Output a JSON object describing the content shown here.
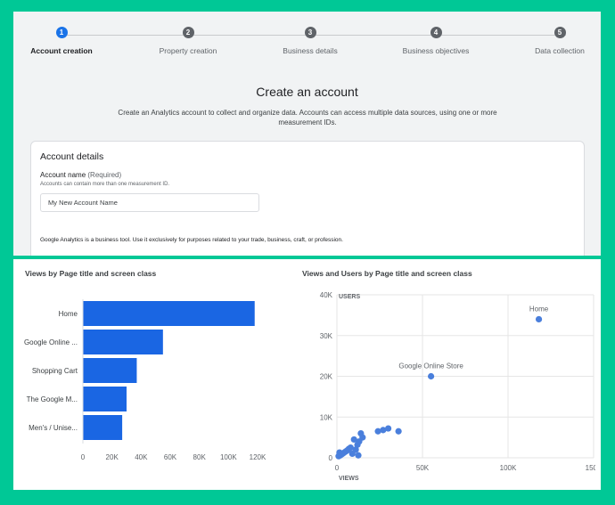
{
  "stepper": {
    "steps": [
      {
        "number": "1",
        "label": "Account creation",
        "active": true
      },
      {
        "number": "2",
        "label": "Property creation",
        "active": false
      },
      {
        "number": "3",
        "label": "Business details",
        "active": false
      },
      {
        "number": "4",
        "label": "Business objectives",
        "active": false
      },
      {
        "number": "5",
        "label": "Data collection",
        "active": false
      }
    ]
  },
  "create": {
    "title": "Create an account",
    "description": "Create an Analytics account to collect and organize data. Accounts can access multiple data sources, using one or more measurement IDs."
  },
  "account_details": {
    "heading": "Account details",
    "name_label": "Account name",
    "name_required": "(Required)",
    "name_hint": "Accounts can contain more than one measurement ID.",
    "name_value": "My New Account Name",
    "notice": "Google Analytics is a business tool. Use it exclusively for purposes related to your trade, business, craft, or profession."
  },
  "colors": {
    "accent": "#1a73e8",
    "bar": "#1a66e3",
    "point": "#4a7fdc"
  },
  "chart_data": [
    {
      "type": "bar",
      "orientation": "horizontal",
      "title": "Views by Page title and screen class",
      "categories": [
        "Home",
        "Google Online ...",
        "Shopping Cart",
        "The Google M...",
        "Men's / Unise..."
      ],
      "values": [
        118000,
        55000,
        37000,
        30000,
        27000
      ],
      "xlim": [
        0,
        120000
      ],
      "x_ticks": [
        "0",
        "20K",
        "40K",
        "60K",
        "80K",
        "100K",
        "120K"
      ],
      "x_tick_values": [
        0,
        20000,
        40000,
        60000,
        80000,
        100000,
        120000
      ]
    },
    {
      "type": "scatter",
      "title": "Views and Users by Page title and screen class",
      "xlabel": "VIEWS",
      "ylabel": "USERS",
      "xlim": [
        0,
        150000
      ],
      "ylim": [
        0,
        40000
      ],
      "x_ticks": [
        "0",
        "50K",
        "100K",
        "150K"
      ],
      "x_tick_values": [
        0,
        50000,
        100000,
        150000
      ],
      "y_ticks": [
        "0",
        "10K",
        "20K",
        "30K",
        "40K"
      ],
      "y_tick_values": [
        0,
        10000,
        20000,
        30000,
        40000
      ],
      "grid": true,
      "annotations": [
        {
          "text": "Home",
          "x": 118000,
          "y": 34000
        },
        {
          "text": "Google Online Store",
          "x": 55000,
          "y": 20000
        }
      ],
      "points": [
        {
          "x": 118000,
          "y": 34000
        },
        {
          "x": 55000,
          "y": 20000
        },
        {
          "x": 36000,
          "y": 6500
        },
        {
          "x": 30000,
          "y": 7200
        },
        {
          "x": 27000,
          "y": 6800
        },
        {
          "x": 24000,
          "y": 6500
        },
        {
          "x": 15000,
          "y": 5000
        },
        {
          "x": 14000,
          "y": 6000
        },
        {
          "x": 13000,
          "y": 4000
        },
        {
          "x": 12000,
          "y": 3200
        },
        {
          "x": 11000,
          "y": 2000
        },
        {
          "x": 10000,
          "y": 4500
        },
        {
          "x": 9000,
          "y": 1000
        },
        {
          "x": 8000,
          "y": 2500
        },
        {
          "x": 7000,
          "y": 2200
        },
        {
          "x": 6000,
          "y": 1800
        },
        {
          "x": 5000,
          "y": 1500
        },
        {
          "x": 4000,
          "y": 1200
        },
        {
          "x": 3000,
          "y": 900
        },
        {
          "x": 2000,
          "y": 600
        },
        {
          "x": 1500,
          "y": 1300
        },
        {
          "x": 1000,
          "y": 400
        },
        {
          "x": 12500,
          "y": 600
        }
      ]
    }
  ]
}
